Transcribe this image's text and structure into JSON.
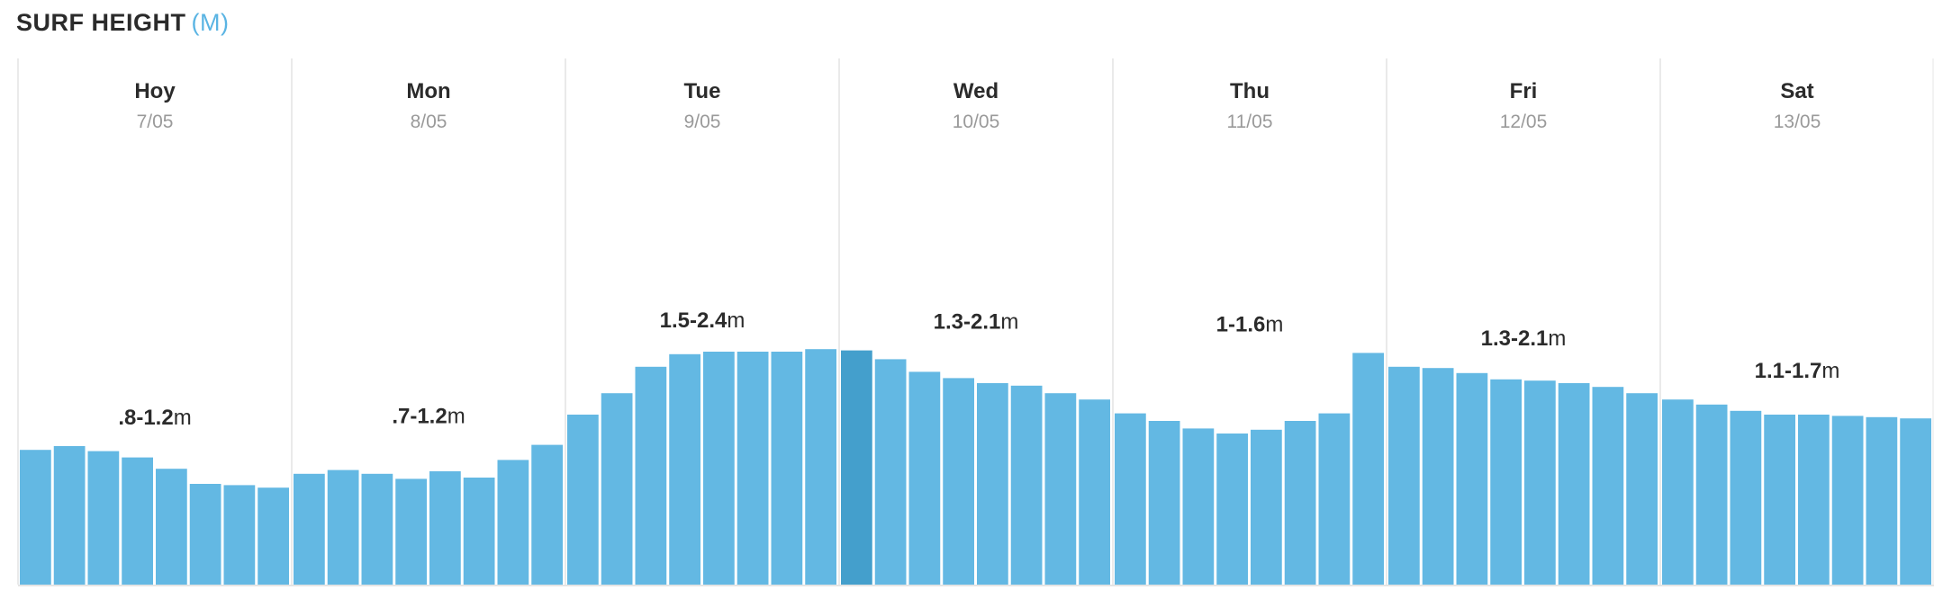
{
  "header": {
    "title": "SURF HEIGHT",
    "unit": "(M)"
  },
  "colors": {
    "bar": "#63b8e3",
    "bar_highlight": "#449fcc",
    "divider": "#e4e4e4",
    "text": "#2b2b2b",
    "muted": "#9a9a9a",
    "accent": "#5ab4e3"
  },
  "chart_data": {
    "type": "bar",
    "highlight_index": 24,
    "bars_per_day": 8,
    "y_range_m": [
      0,
      3.5
    ],
    "days": [
      {
        "name": "Hoy",
        "date": "7/05",
        "range": ".8-1.2",
        "unit": "m",
        "values": [
          1.07,
          1.1,
          1.06,
          1.01,
          0.92,
          0.8,
          0.79,
          0.77
        ]
      },
      {
        "name": "Mon",
        "date": "8/05",
        "range": ".7-1.2",
        "unit": "m",
        "values": [
          0.88,
          0.91,
          0.88,
          0.84,
          0.9,
          0.85,
          0.99,
          1.11
        ]
      },
      {
        "name": "Tue",
        "date": "9/05",
        "range": "1.5-2.4",
        "unit": "m",
        "values": [
          1.35,
          1.52,
          1.73,
          1.83,
          1.85,
          1.85,
          1.85,
          1.87
        ]
      },
      {
        "name": "Wed",
        "date": "10/05",
        "range": "1.3-2.1",
        "unit": "m",
        "values": [
          1.86,
          1.79,
          1.69,
          1.64,
          1.6,
          1.58,
          1.52,
          1.47
        ]
      },
      {
        "name": "Thu",
        "date": "11/05",
        "range": "1-1.6",
        "unit": "m",
        "values": [
          1.36,
          1.3,
          1.24,
          1.2,
          1.23,
          1.3,
          1.36,
          1.84
        ]
      },
      {
        "name": "Fri",
        "date": "12/05",
        "range": "1.3-2.1",
        "unit": "m",
        "values": [
          1.73,
          1.72,
          1.68,
          1.63,
          1.62,
          1.6,
          1.57,
          1.52
        ]
      },
      {
        "name": "Sat",
        "date": "13/05",
        "range": "1.1-1.7",
        "unit": "m",
        "values": [
          1.47,
          1.43,
          1.38,
          1.35,
          1.35,
          1.34,
          1.33,
          1.32
        ]
      }
    ]
  }
}
